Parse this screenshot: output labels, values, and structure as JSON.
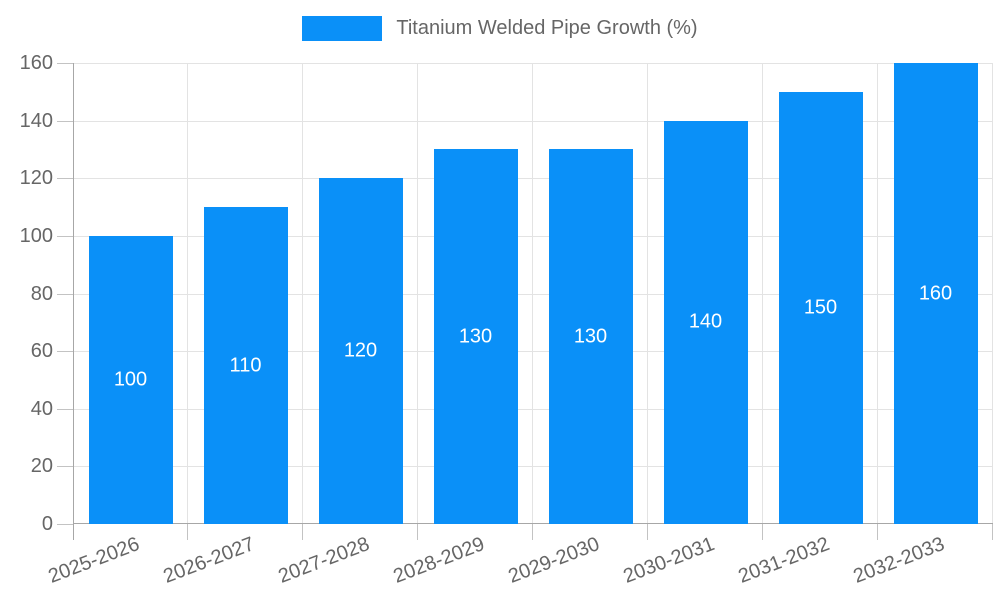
{
  "legend": {
    "label": "Titanium Welded Pipe Growth (%)"
  },
  "chart_data": {
    "type": "bar",
    "title": "Titanium Welded Pipe Growth (%)",
    "categories": [
      "2025-2026",
      "2026-2027",
      "2027-2028",
      "2028-2029",
      "2029-2030",
      "2030-2031",
      "2031-2032",
      "2032-2033"
    ],
    "values": [
      100,
      110,
      120,
      130,
      130,
      140,
      150,
      160
    ],
    "value_labels": [
      "100",
      "110",
      "120",
      "130",
      "130",
      "140",
      "150",
      "160"
    ],
    "xlabel": "",
    "ylabel": "",
    "ylim": [
      0,
      160
    ],
    "yticks": [
      0,
      20,
      40,
      60,
      80,
      100,
      120,
      140,
      160
    ],
    "grid": true,
    "legend_position": "top",
    "value_labels_inside_bars": true
  },
  "colors": {
    "bar": "#0a90f8",
    "grid": "#e3e3e3",
    "axis": "#a7a7a7",
    "tick": "#c3c3c3",
    "text": "#666666",
    "value_label": "#ffffff",
    "background": "#ffffff"
  }
}
